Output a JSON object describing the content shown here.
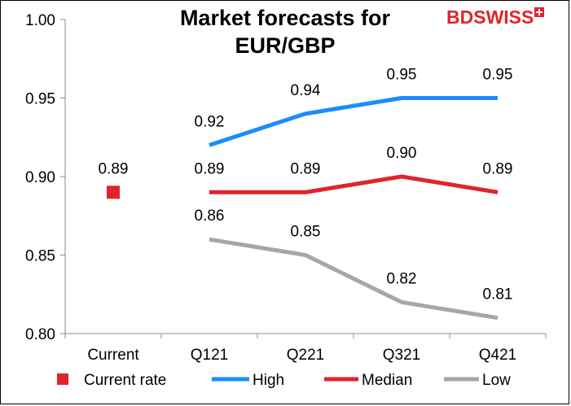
{
  "logo": {
    "part1": "BD",
    "part2": "SWISS"
  },
  "chart_data": {
    "type": "line",
    "title_lines": [
      "Market forecasts for",
      "EUR/GBP"
    ],
    "categories": [
      "Current",
      "Q121",
      "Q221",
      "Q321",
      "Q421"
    ],
    "ylim": [
      0.8,
      1.0
    ],
    "yticks": [
      "0.80",
      "0.85",
      "0.90",
      "0.95",
      "1.00"
    ],
    "grid": false,
    "legend_position": "bottom",
    "series": [
      {
        "name": "Current rate",
        "kind": "marker",
        "color": "#e0242b",
        "values": [
          0.89,
          null,
          null,
          null,
          null
        ],
        "labels": [
          "0.89",
          "",
          "",
          "",
          ""
        ]
      },
      {
        "name": "High",
        "kind": "line",
        "color": "#1a8cff",
        "values": [
          null,
          0.92,
          0.94,
          0.95,
          0.95
        ],
        "labels": [
          "",
          "0.92",
          "0.94",
          "0.95",
          "0.95"
        ]
      },
      {
        "name": "Median",
        "kind": "line",
        "color": "#e0242b",
        "values": [
          null,
          0.89,
          0.89,
          0.9,
          0.89
        ],
        "labels": [
          "",
          "0.89",
          "0.89",
          "0.90",
          "0.89"
        ]
      },
      {
        "name": "Low",
        "kind": "line",
        "color": "#a6a6a6",
        "values": [
          null,
          0.86,
          0.85,
          0.82,
          0.81
        ],
        "labels": [
          "",
          "0.86",
          "0.85",
          "0.82",
          "0.81"
        ]
      }
    ]
  }
}
